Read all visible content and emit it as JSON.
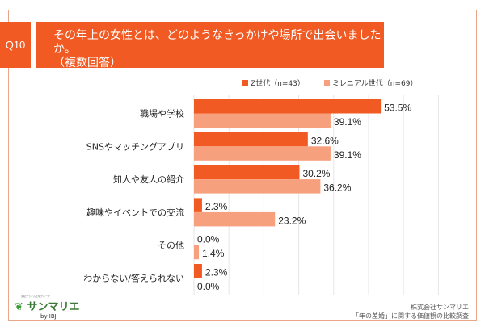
{
  "header": {
    "question_no": "Q10",
    "title_line1": "その年上の女性とは、どのようなきっかけや場所で出会いましたか。",
    "title_line2": "（複数回答）"
  },
  "colors": {
    "z_gen": "#f15a22",
    "millennial": "#f7a07e",
    "accent": "#f15a22"
  },
  "chart_data": {
    "type": "bar",
    "orientation": "horizontal",
    "categories": [
      "職場や学校",
      "SNSやマッチングアプリ",
      "知人や友人の紹介",
      "趣味やイベントでの交流",
      "その他",
      "わからない/答えられない"
    ],
    "series": [
      {
        "name": "Z世代（n=43）",
        "values": [
          53.5,
          32.6,
          30.2,
          2.3,
          0.0,
          2.3
        ],
        "labels": [
          "53.5%",
          "32.6%",
          "30.2%",
          "2.3%",
          "0.0%",
          "2.3%"
        ]
      },
      {
        "name": "ミレニアル世代（n=69）",
        "values": [
          39.1,
          39.1,
          36.2,
          23.2,
          1.4,
          0.0
        ],
        "labels": [
          "39.1%",
          "39.1%",
          "36.2%",
          "23.2%",
          "1.4%",
          "0.0%"
        ]
      }
    ],
    "xlim": [
      0,
      70
    ],
    "grid": true,
    "legend": "top-right"
  },
  "footer": {
    "logo_tagline": "東証プライム上場グループ",
    "logo_name": "サンマリエ",
    "logo_by": "by IBJ",
    "company": "株式会社サンマリエ",
    "survey": "「年の差婚」に関する価値観の比較調査"
  }
}
